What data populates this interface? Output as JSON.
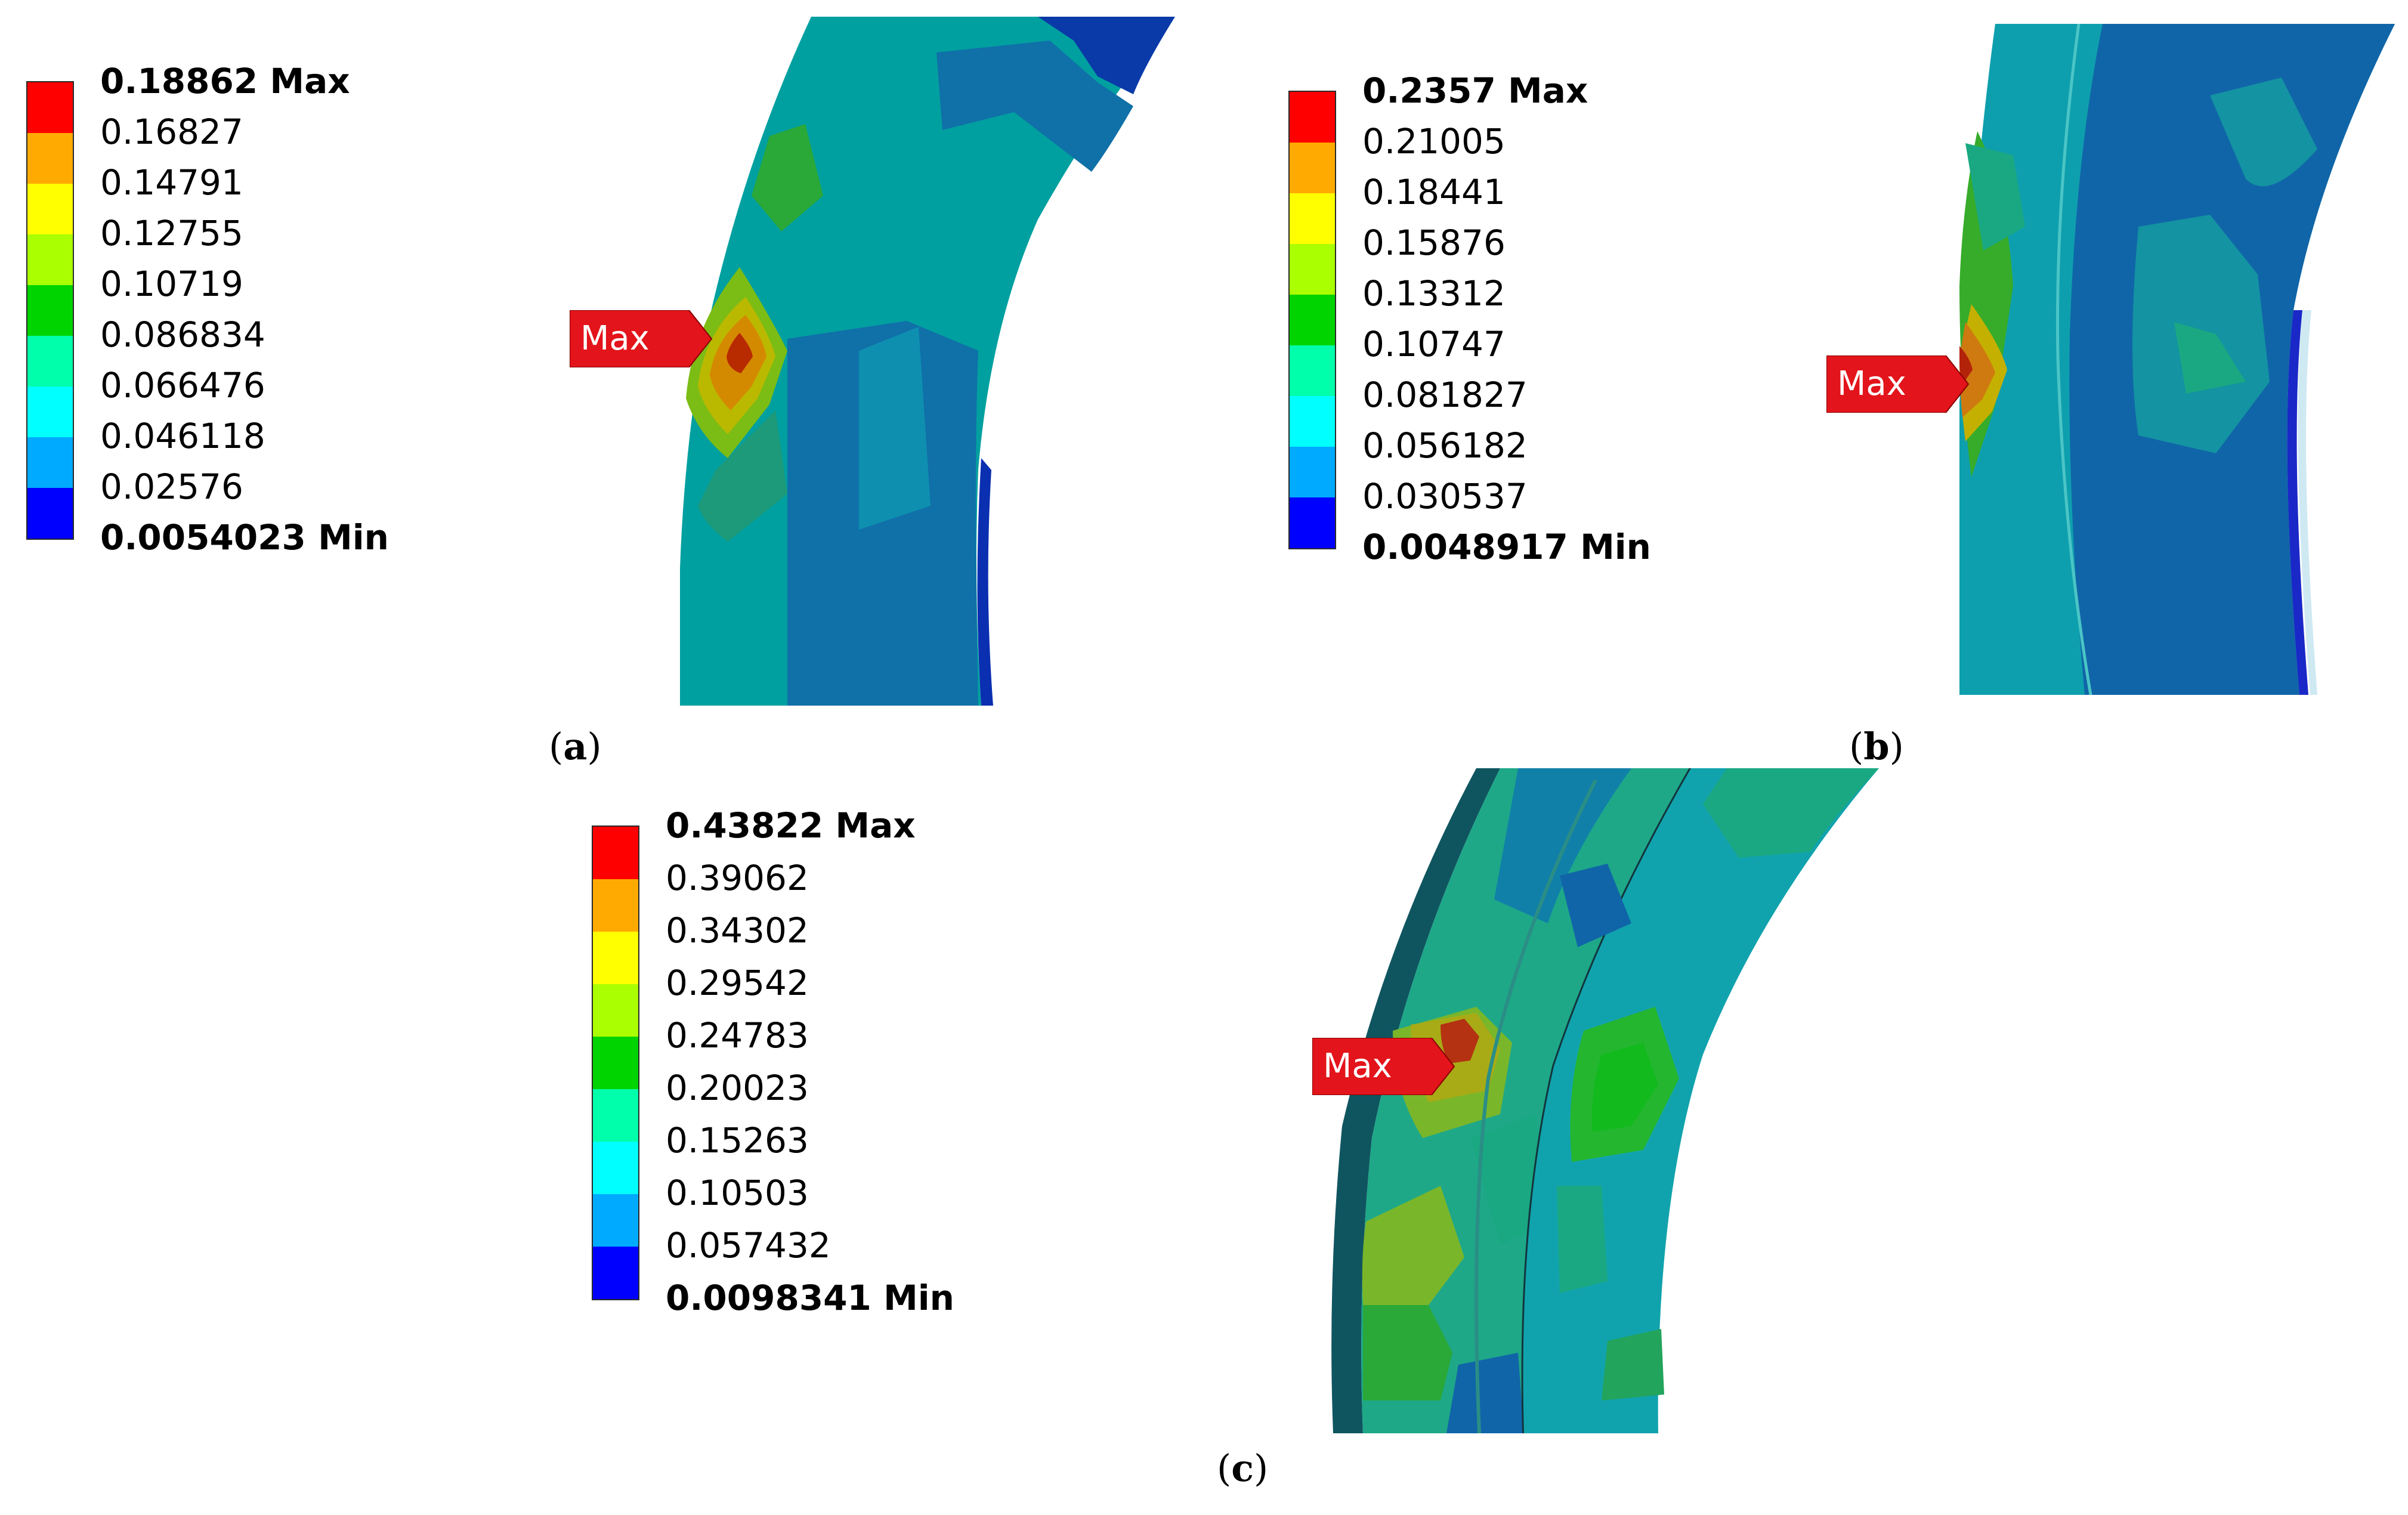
{
  "color_scale": [
    "#ff0000",
    "#ffaa00",
    "#ffff00",
    "#aaff00",
    "#00d400",
    "#00ffaa",
    "#00ffff",
    "#00aaff",
    "#0000ff"
  ],
  "panels": [
    {
      "caption_letter": "a",
      "legend": [
        "0.18862 Max",
        "0.16827",
        "0.14791",
        "0.12755",
        "0.10719",
        "0.086834",
        "0.066476",
        "0.046118",
        "0.02576",
        "0.0054023 Min"
      ],
      "max_tag": "Max"
    },
    {
      "caption_letter": "b",
      "legend": [
        "0.2357 Max",
        "0.21005",
        "0.18441",
        "0.15876",
        "0.13312",
        "0.10747",
        "0.081827",
        "0.056182",
        "0.030537",
        "0.0048917 Min"
      ],
      "max_tag": "Max"
    },
    {
      "caption_letter": "c",
      "legend": [
        "0.43822 Max",
        "0.39062",
        "0.34302",
        "0.29542",
        "0.24783",
        "0.20023",
        "0.15263",
        "0.10503",
        "0.057432",
        "0.0098341 Min"
      ],
      "max_tag": "Max"
    }
  ]
}
